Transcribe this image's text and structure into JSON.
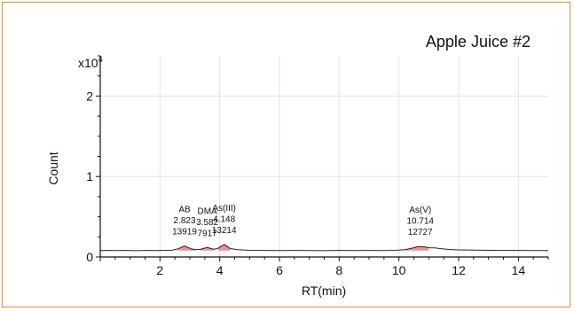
{
  "chart_data": {
    "type": "line",
    "title": "Apple Juice #2",
    "xlabel": "RT(min)",
    "ylabel": "Count",
    "y_multiplier_label": "x10",
    "y_multiplier_exponent": "4",
    "xlim": [
      0,
      15
    ],
    "ylim": [
      0,
      2.5
    ],
    "x_ticks": [
      2,
      4,
      6,
      8,
      10,
      12,
      14
    ],
    "y_ticks": [
      0,
      1,
      2
    ],
    "grid": true,
    "line_color": "#222222",
    "peak_fill_color": "#e8737a",
    "baseline": 0.08,
    "trace": [
      [
        0.0,
        0.08
      ],
      [
        0.3,
        0.082
      ],
      [
        0.6,
        0.079
      ],
      [
        0.9,
        0.081
      ],
      [
        1.2,
        0.078
      ],
      [
        1.5,
        0.082
      ],
      [
        1.8,
        0.079
      ],
      [
        2.1,
        0.081
      ],
      [
        2.4,
        0.084
      ],
      [
        2.6,
        0.1
      ],
      [
        2.75,
        0.125
      ],
      [
        2.82,
        0.135
      ],
      [
        2.9,
        0.125
      ],
      [
        3.05,
        0.1
      ],
      [
        3.2,
        0.09
      ],
      [
        3.35,
        0.095
      ],
      [
        3.5,
        0.11
      ],
      [
        3.58,
        0.118
      ],
      [
        3.66,
        0.11
      ],
      [
        3.8,
        0.095
      ],
      [
        3.95,
        0.11
      ],
      [
        4.08,
        0.14
      ],
      [
        4.15,
        0.155
      ],
      [
        4.22,
        0.14
      ],
      [
        4.35,
        0.105
      ],
      [
        4.6,
        0.09
      ],
      [
        5.0,
        0.083
      ],
      [
        5.5,
        0.081
      ],
      [
        6.0,
        0.079
      ],
      [
        6.5,
        0.082
      ],
      [
        7.0,
        0.08
      ],
      [
        7.5,
        0.078
      ],
      [
        8.0,
        0.081
      ],
      [
        8.5,
        0.079
      ],
      [
        9.0,
        0.082
      ],
      [
        9.5,
        0.08
      ],
      [
        9.9,
        0.083
      ],
      [
        10.2,
        0.09
      ],
      [
        10.45,
        0.11
      ],
      [
        10.6,
        0.125
      ],
      [
        10.714,
        0.13
      ],
      [
        10.85,
        0.125
      ],
      [
        11.0,
        0.115
      ],
      [
        11.2,
        0.112
      ],
      [
        11.4,
        0.103
      ],
      [
        11.7,
        0.093
      ],
      [
        12.0,
        0.088
      ],
      [
        12.5,
        0.085
      ],
      [
        13.0,
        0.083
      ],
      [
        13.5,
        0.082
      ],
      [
        14.0,
        0.081
      ],
      [
        14.5,
        0.08
      ],
      [
        15.0,
        0.08
      ]
    ],
    "peaks": [
      {
        "name": "AB",
        "rt": "2.823",
        "area": "13919",
        "x": 2.823,
        "y": 0.135
      },
      {
        "name": "DMA",
        "rt": "3.582",
        "area": "7917",
        "x": 3.582,
        "y": 0.118
      },
      {
        "name": "As(III)",
        "rt": "4.148",
        "area": "13214",
        "x": 4.148,
        "y": 0.155
      },
      {
        "name": "As(V)",
        "rt": "10.714",
        "area": "12727",
        "x": 10.714,
        "y": 0.13
      }
    ]
  }
}
